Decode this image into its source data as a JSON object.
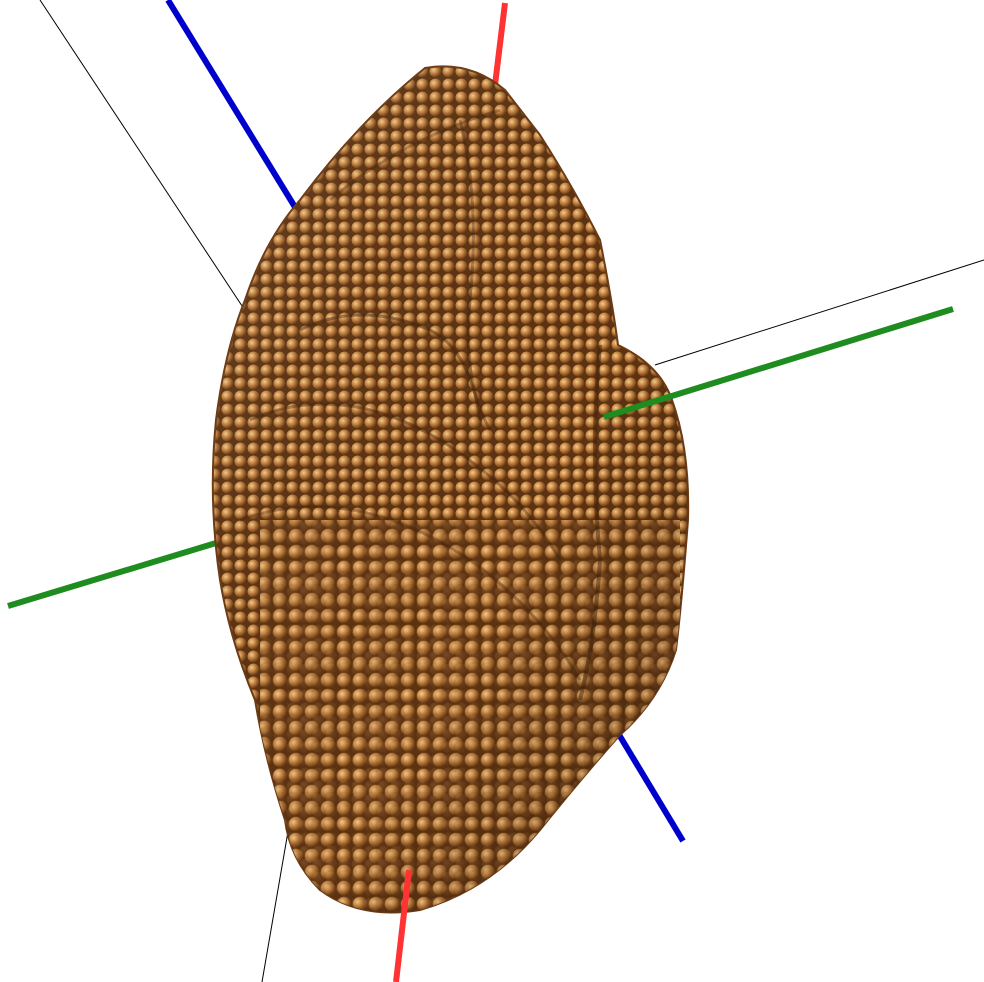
{
  "scene": {
    "description_name": "nanoparticle-3d-render",
    "colors": {
      "background": "#ffffff",
      "axis_x": "#ff3333",
      "axis_y": "#1e8c1e",
      "axis_z": "#0000cc",
      "box_edge": "#000000",
      "atom_base": "#b87333",
      "atom_highlight": "#f0c080",
      "atom_shadow": "#5a3010"
    }
  }
}
